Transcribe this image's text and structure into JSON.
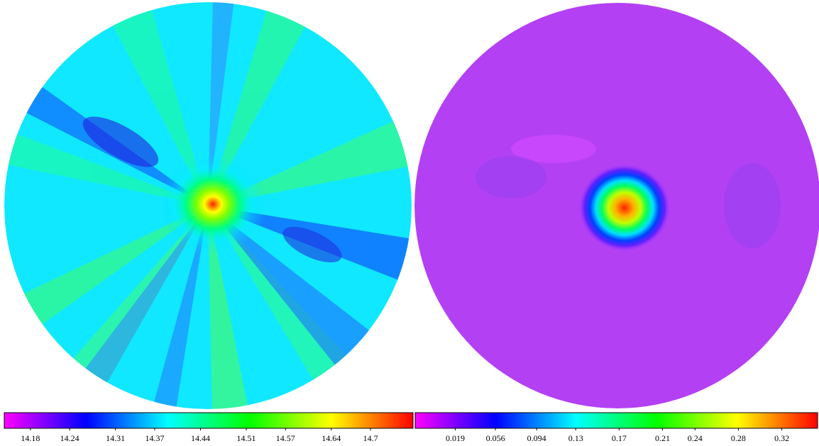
{
  "chart_data": [
    {
      "type": "heatmap",
      "colormap": [
        "#ff00ff",
        "#0000ff",
        "#00ffff",
        "#00ff00",
        "#ffff00",
        "#ff0000"
      ],
      "clim": [
        14.14,
        14.765
      ],
      "cticks": [
        14.18,
        14.24,
        14.31,
        14.37,
        14.44,
        14.51,
        14.57,
        14.64,
        14.7
      ]
    },
    {
      "type": "heatmap",
      "colormap": [
        "#ff00ff",
        "#0000ff",
        "#00ffff",
        "#00ff00",
        "#ffff00",
        "#ff0000"
      ],
      "clim": [
        -0.018,
        0.353
      ],
      "cticks": [
        0.019,
        0.056,
        0.094,
        0.13,
        0.17,
        0.21,
        0.24,
        0.28,
        0.32
      ]
    }
  ]
}
